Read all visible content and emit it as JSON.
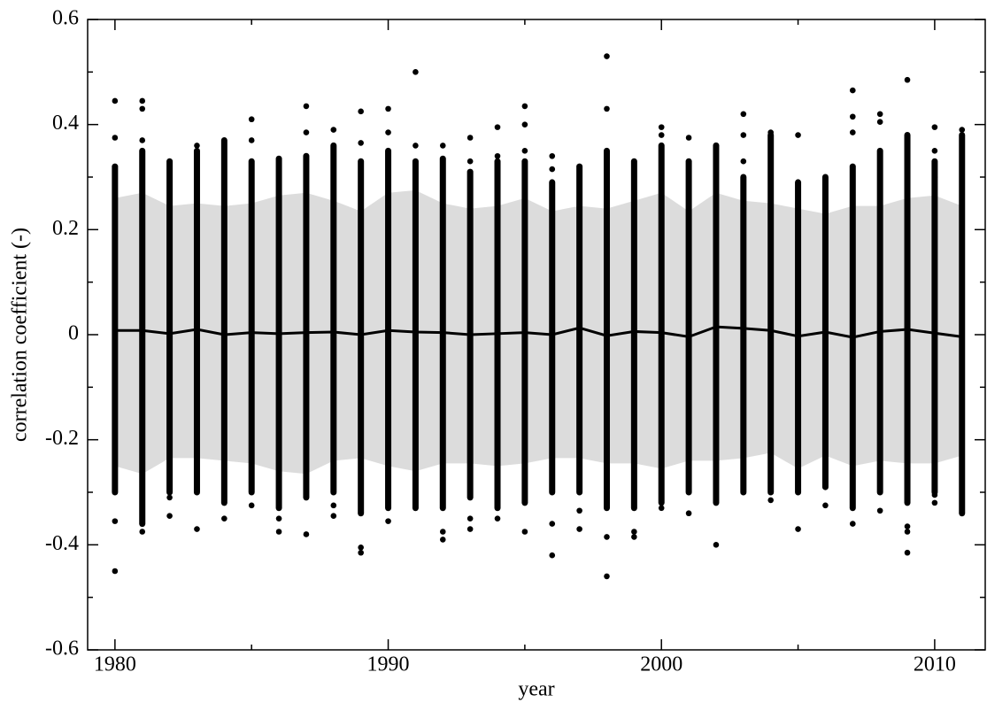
{
  "chart_data": {
    "type": "scatter-band",
    "xlabel": "year",
    "ylabel": "correlation coefficient (-)",
    "xlim": [
      1979,
      2011.85
    ],
    "ylim": [
      -0.6,
      0.6
    ],
    "xticks": [
      1980,
      1990,
      2000,
      2010
    ],
    "xminor": [
      1985,
      1995,
      2005
    ],
    "yticks": [
      -0.6,
      -0.4,
      -0.2,
      0,
      0.2,
      0.4,
      0.6
    ],
    "yminor": [
      -0.5,
      -0.3,
      -0.1,
      0.1,
      0.3,
      0.5
    ],
    "point_color": "#000000",
    "band_color": "#dcdcdc",
    "line_color": "#000000",
    "x": [
      1980,
      1981,
      1982,
      1983,
      1984,
      1985,
      1986,
      1987,
      1988,
      1989,
      1990,
      1991,
      1992,
      1993,
      1994,
      1995,
      1996,
      1997,
      1998,
      1999,
      2000,
      2001,
      2002,
      2003,
      2004,
      2005,
      2006,
      2007,
      2008,
      2009,
      2010,
      2011
    ],
    "mean": [
      0.008,
      0.008,
      0.002,
      0.01,
      0.0,
      0.004,
      0.002,
      0.004,
      0.005,
      0.0,
      0.008,
      0.005,
      0.004,
      0.0,
      0.002,
      0.004,
      0.0,
      0.013,
      -0.002,
      0.006,
      0.004,
      -0.004,
      0.015,
      0.012,
      0.008,
      -0.003,
      0.005,
      -0.005,
      0.006,
      0.01,
      0.003,
      -0.004
    ],
    "band_upper": [
      0.26,
      0.27,
      0.245,
      0.25,
      0.245,
      0.25,
      0.265,
      0.27,
      0.255,
      0.235,
      0.27,
      0.275,
      0.25,
      0.24,
      0.245,
      0.26,
      0.235,
      0.245,
      0.24,
      0.255,
      0.27,
      0.235,
      0.27,
      0.255,
      0.25,
      0.24,
      0.23,
      0.245,
      0.245,
      0.26,
      0.265,
      0.245
    ],
    "band_lower": [
      -0.25,
      -0.265,
      -0.235,
      -0.235,
      -0.24,
      -0.245,
      -0.26,
      -0.265,
      -0.24,
      -0.235,
      -0.25,
      -0.26,
      -0.245,
      -0.245,
      -0.25,
      -0.245,
      -0.235,
      -0.235,
      -0.245,
      -0.245,
      -0.255,
      -0.24,
      -0.24,
      -0.235,
      -0.225,
      -0.255,
      -0.23,
      -0.25,
      -0.24,
      -0.245,
      -0.245,
      -0.23
    ],
    "dense_low": [
      -0.3,
      -0.36,
      -0.3,
      -0.3,
      -0.32,
      -0.3,
      -0.33,
      -0.31,
      -0.3,
      -0.34,
      -0.33,
      -0.33,
      -0.33,
      -0.31,
      -0.33,
      -0.32,
      -0.3,
      -0.3,
      -0.33,
      -0.33,
      -0.32,
      -0.3,
      -0.32,
      -0.3,
      -0.3,
      -0.3,
      -0.29,
      -0.33,
      -0.3,
      -0.32,
      -0.3,
      -0.34
    ],
    "dense_high": [
      0.32,
      0.35,
      0.33,
      0.35,
      0.37,
      0.33,
      0.335,
      0.34,
      0.36,
      0.33,
      0.35,
      0.33,
      0.335,
      0.31,
      0.33,
      0.33,
      0.29,
      0.32,
      0.35,
      0.33,
      0.36,
      0.33,
      0.36,
      0.3,
      0.38,
      0.29,
      0.3,
      0.32,
      0.35,
      0.38,
      0.33,
      0.38
    ],
    "outliers": [
      [
        0.445,
        0.375,
        -0.355,
        -0.45
      ],
      [
        0.445,
        0.43,
        0.37,
        -0.375
      ],
      [
        -0.31,
        -0.345
      ],
      [
        0.36,
        -0.37
      ],
      [
        -0.35
      ],
      [
        0.41,
        0.37,
        -0.325
      ],
      [
        -0.35,
        -0.375
      ],
      [
        0.435,
        0.385,
        -0.38
      ],
      [
        0.39,
        -0.325,
        -0.345
      ],
      [
        0.425,
        0.365,
        -0.405,
        -0.415
      ],
      [
        0.43,
        0.385,
        -0.355
      ],
      [
        0.5,
        0.36
      ],
      [
        0.36,
        -0.375,
        -0.39
      ],
      [
        0.375,
        0.33,
        -0.35,
        -0.37
      ],
      [
        0.395,
        0.34,
        -0.35
      ],
      [
        0.435,
        0.4,
        0.35,
        -0.375
      ],
      [
        0.34,
        0.315,
        -0.36,
        -0.42
      ],
      [
        -0.335,
        -0.37
      ],
      [
        0.53,
        0.43,
        -0.385,
        -0.46
      ],
      [
        -0.375,
        -0.385
      ],
      [
        0.395,
        0.38,
        -0.33
      ],
      [
        0.375,
        -0.34
      ],
      [
        0.36,
        -0.4
      ],
      [
        0.42,
        0.38,
        0.33
      ],
      [
        0.385,
        -0.315
      ],
      [
        0.38,
        -0.37
      ],
      [
        -0.325
      ],
      [
        0.465,
        0.415,
        0.385,
        -0.36
      ],
      [
        0.42,
        0.405,
        -0.335
      ],
      [
        0.485,
        -0.365,
        -0.375,
        -0.415
      ],
      [
        0.395,
        0.35,
        0.3,
        -0.305,
        -0.32
      ],
      [
        0.39
      ]
    ]
  }
}
